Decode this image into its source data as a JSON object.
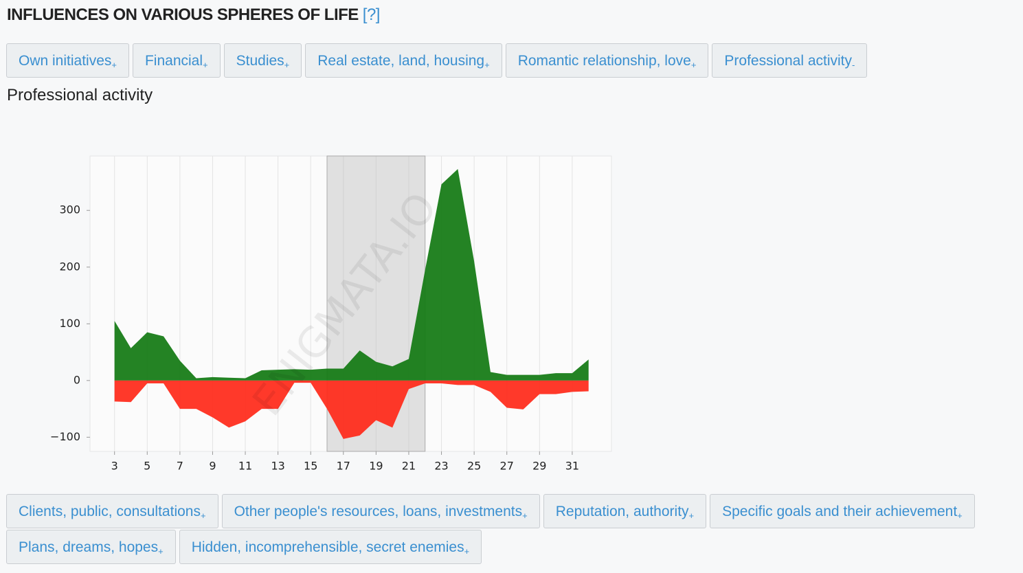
{
  "header": {
    "title": "INFLUENCES ON VARIOUS SPHERES OF LIFE",
    "help": "[?]"
  },
  "tabs": [
    {
      "label": "Own initiatives",
      "sign": "+"
    },
    {
      "label": "Financial",
      "sign": "+"
    },
    {
      "label": "Studies",
      "sign": "+"
    },
    {
      "label": "Real estate, land, housing",
      "sign": "+"
    },
    {
      "label": "Romantic relationship, love",
      "sign": "+"
    },
    {
      "label": "Professional activity",
      "sign": "-"
    }
  ],
  "section_title": "Professional activity",
  "chart_data": {
    "type": "area",
    "watermark": "ENIGMATA.IO",
    "x": [
      3,
      4,
      5,
      6,
      7,
      8,
      9,
      10,
      11,
      12,
      13,
      14,
      15,
      16,
      17,
      18,
      19,
      20,
      21,
      22,
      23,
      24,
      25,
      26,
      27,
      28,
      29,
      30,
      31,
      32
    ],
    "xlim": [
      1.5,
      33.4
    ],
    "xticks": [
      3,
      5,
      7,
      9,
      11,
      13,
      15,
      17,
      19,
      21,
      23,
      25,
      27,
      29,
      31
    ],
    "ylim": [
      -125,
      396
    ],
    "yticks": [
      {
        "value": -100,
        "label": "−100"
      },
      0,
      100,
      200,
      300
    ],
    "grid": true,
    "highlight": [
      16,
      22
    ],
    "series": [
      {
        "color": "#137a13",
        "values": [
          105,
          57,
          85,
          78,
          35,
          4,
          6,
          5,
          4,
          18,
          19,
          20,
          19,
          21,
          21,
          53,
          33,
          25,
          38,
          195,
          346,
          373,
          210,
          15,
          10,
          10,
          10,
          13,
          13,
          37
        ]
      },
      {
        "color": "#ff2a1a",
        "values": [
          -37,
          -38,
          -5,
          -5,
          -50,
          -50,
          -65,
          -83,
          -72,
          -50,
          -50,
          -4,
          -4,
          -50,
          -103,
          -97,
          -70,
          -83,
          -15,
          -5,
          -5,
          -8,
          -8,
          -20,
          -48,
          -51,
          -24,
          -24,
          -20,
          -19
        ]
      }
    ]
  },
  "buttons": [
    {
      "label": "Clients, public, consultations",
      "sign": "+"
    },
    {
      "label": "Other people's resources, loans, investments",
      "sign": "+"
    },
    {
      "label": "Reputation, authority",
      "sign": "+"
    },
    {
      "label": "Specific goals and their achievement",
      "sign": "+"
    },
    {
      "label": "Plans, dreams, hopes",
      "sign": "+"
    },
    {
      "label": "Hidden, incomprehensible, secret enemies",
      "sign": "+"
    }
  ]
}
